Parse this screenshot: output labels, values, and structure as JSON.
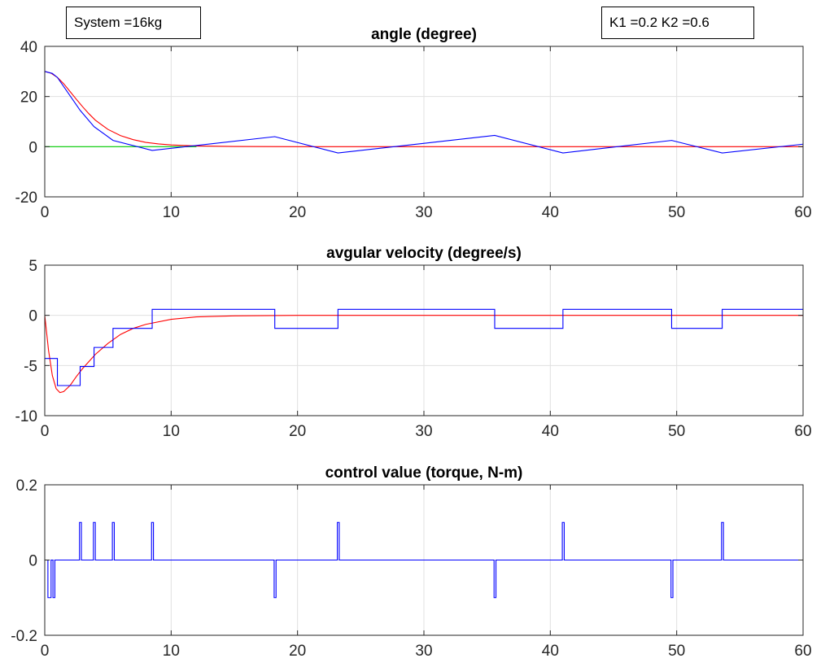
{
  "annotations": {
    "system": "System =16kg",
    "gains": "K1 =0.2 K2 =0.6"
  },
  "colors": {
    "measured": "#0000ff",
    "model": "#ff0000",
    "reference": "#00cc00",
    "grid": "#e0e0e0",
    "axes": "#262626"
  },
  "chart_data": [
    {
      "type": "line",
      "title": "angle (degree)",
      "xlim": [
        0,
        60
      ],
      "ylim": [
        -20,
        40
      ],
      "xticks": [
        0,
        10,
        20,
        30,
        40,
        50,
        60
      ],
      "yticks": [
        -20,
        0,
        20,
        40
      ],
      "grid": true,
      "series": [
        {
          "key": "reference",
          "x": [
            0,
            12
          ],
          "y": [
            0,
            0
          ],
          "step": false
        },
        {
          "key": "model",
          "x": [
            0,
            0.5,
            1,
            1.5,
            2,
            2.5,
            3,
            3.5,
            4,
            5,
            6,
            7,
            8,
            9,
            10,
            12,
            15,
            20,
            30,
            40,
            50,
            60
          ],
          "y": [
            30,
            29.3,
            27.6,
            25.1,
            22.0,
            18.9,
            15.9,
            13.1,
            10.6,
            6.9,
            4.4,
            2.8,
            1.7,
            1.1,
            0.7,
            0.3,
            0.1,
            0,
            0,
            0,
            0,
            0
          ],
          "step": false
        },
        {
          "key": "measured",
          "x": [
            0,
            0.6,
            1.0,
            2.8,
            3.9,
            5.4,
            8.5,
            18.2,
            23.2,
            35.6,
            41.0,
            49.6,
            53.6,
            60
          ],
          "y": [
            30,
            29.2,
            27.6,
            14.5,
            8.0,
            2.5,
            -1.5,
            4.0,
            -2.5,
            4.5,
            -2.5,
            2.5,
            -2.5,
            1.0
          ],
          "step": false
        }
      ]
    },
    {
      "type": "line",
      "title": "avgular velocity (degree/s)",
      "xlim": [
        0,
        60
      ],
      "ylim": [
        -10,
        5
      ],
      "xticks": [
        0,
        10,
        20,
        30,
        40,
        50,
        60
      ],
      "yticks": [
        -10,
        -5,
        0,
        5
      ],
      "grid": true,
      "series": [
        {
          "key": "model",
          "x": [
            0,
            0.3,
            0.6,
            0.9,
            1.2,
            1.5,
            2.0,
            2.5,
            3.0,
            4.0,
            5.0,
            6.0,
            7.0,
            8.0,
            10.0,
            12.0,
            15.0,
            20.0,
            30.0,
            60.0
          ],
          "y": [
            0,
            -3.5,
            -6.0,
            -7.3,
            -7.7,
            -7.6,
            -7.0,
            -6.1,
            -5.3,
            -3.9,
            -2.8,
            -1.9,
            -1.3,
            -0.9,
            -0.4,
            -0.15,
            -0.05,
            0,
            0,
            0
          ],
          "step": false
        },
        {
          "key": "measured",
          "x": [
            0,
            0.6,
            1.0,
            2.8,
            3.9,
            5.4,
            8.5,
            18.2,
            23.2,
            35.6,
            41.0,
            49.6,
            53.6,
            60
          ],
          "y": [
            -4.3,
            -4.3,
            -7.0,
            -5.1,
            -3.2,
            -1.3,
            0.6,
            -1.3,
            0.6,
            -1.3,
            0.6,
            -1.3,
            0.6,
            0.6
          ],
          "step": true
        }
      ]
    },
    {
      "type": "line",
      "title": "control value (torque, N-m)",
      "xlim": [
        0,
        60
      ],
      "ylim": [
        -0.2,
        0.2
      ],
      "xticks": [
        0,
        10,
        20,
        30,
        40,
        50,
        60
      ],
      "yticks": [
        -0.2,
        0,
        0.2
      ],
      "grid": true,
      "series": [
        {
          "key": "measured",
          "x": [
            0,
            0.25,
            0.25,
            0.5,
            0.5,
            0.65,
            0.65,
            0.8,
            0.8,
            2.75,
            2.75,
            2.9,
            2.9,
            3.85,
            3.85,
            4.0,
            4.0,
            5.35,
            5.35,
            5.5,
            5.5,
            8.45,
            8.45,
            8.6,
            8.6,
            18.15,
            18.15,
            18.3,
            18.3,
            23.15,
            23.15,
            23.3,
            23.3,
            35.55,
            35.55,
            35.7,
            35.7,
            40.95,
            40.95,
            41.1,
            41.1,
            49.55,
            49.55,
            49.7,
            49.7,
            53.55,
            53.55,
            53.7,
            53.7,
            60
          ],
          "y": [
            0,
            0,
            -0.1,
            -0.1,
            0,
            0,
            -0.1,
            -0.1,
            0,
            0,
            0.1,
            0.1,
            0,
            0,
            0.1,
            0.1,
            0,
            0,
            0.1,
            0.1,
            0,
            0,
            0.1,
            0.1,
            0,
            0,
            -0.1,
            -0.1,
            0,
            0,
            0.1,
            0.1,
            0,
            0,
            -0.1,
            -0.1,
            0,
            0,
            0.1,
            0.1,
            0,
            0,
            -0.1,
            -0.1,
            0,
            0,
            0.1,
            0.1,
            0,
            0
          ],
          "step": false
        }
      ]
    }
  ]
}
